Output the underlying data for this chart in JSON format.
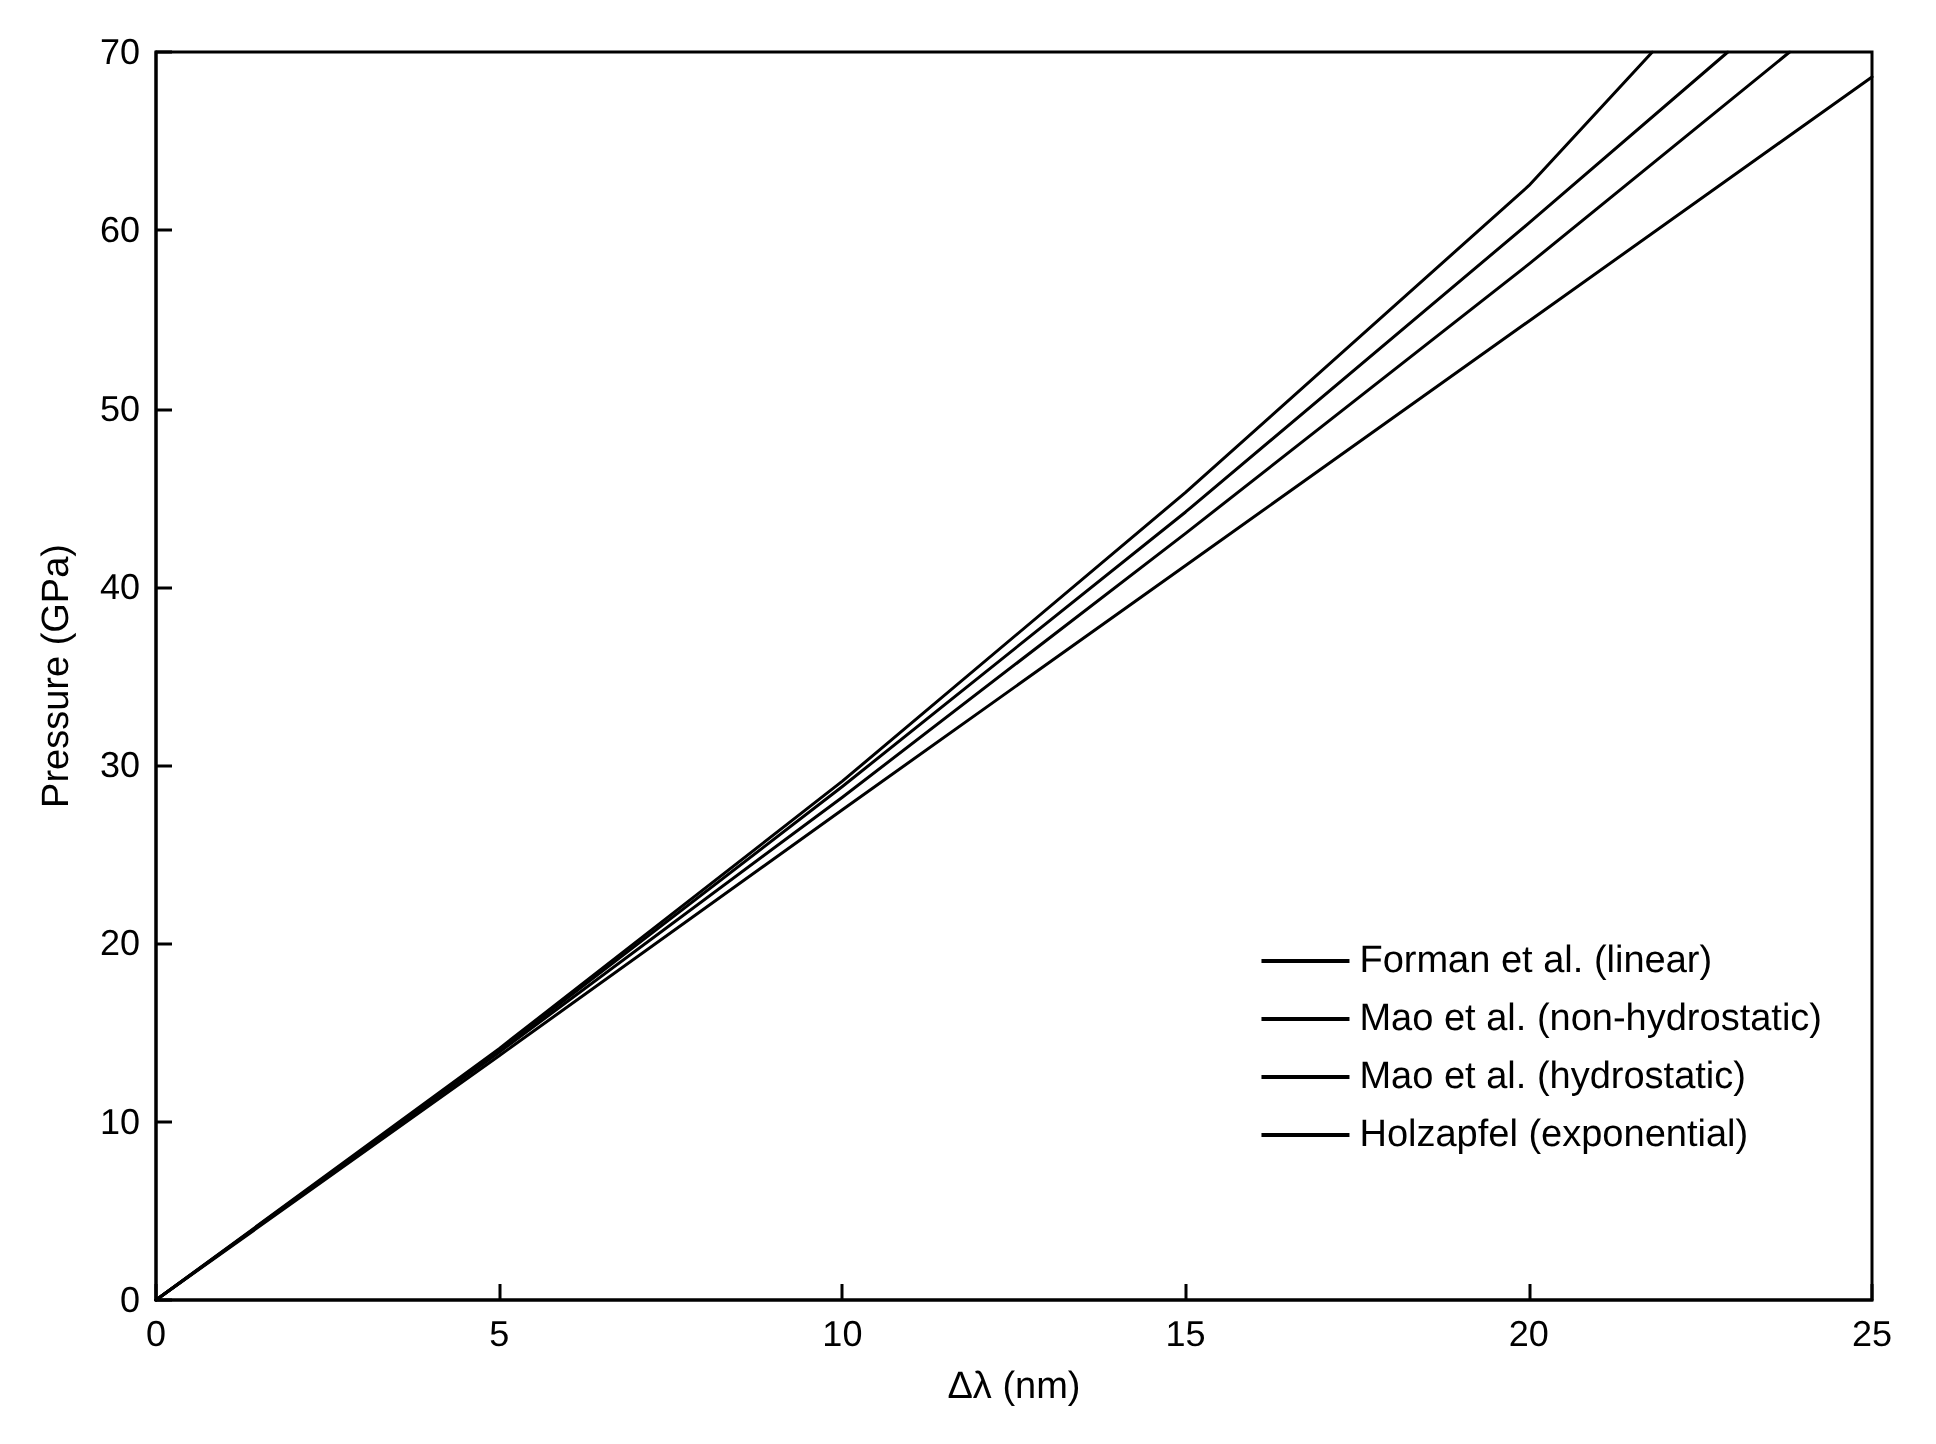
{
  "chart_data": {
    "type": "line",
    "xlabel": "Δλ (nm)",
    "ylabel": "Pressure (GPa)",
    "xlim": [
      0,
      25
    ],
    "ylim": [
      0,
      70
    ],
    "xticks": [
      0,
      5,
      10,
      15,
      20,
      25
    ],
    "yticks": [
      0,
      10,
      20,
      30,
      40,
      50,
      60,
      70
    ],
    "grid": false,
    "legend": "bottom right",
    "marker": "none",
    "line_style": "solid",
    "series": [
      {
        "name": "Forman et al. (linear)",
        "color": "#000000",
        "x": [
          0,
          5,
          10,
          15,
          20,
          25
        ],
        "values": [
          0,
          13.7,
          27.5,
          41.2,
          54.9,
          68.6
        ]
      },
      {
        "name": "Mao et al. (non-hydrostatic)",
        "color": "#000000",
        "x": [
          0,
          5,
          10,
          15,
          20,
          23.8
        ],
        "values": [
          0,
          13.9,
          28.2,
          43,
          58.1,
          70
        ]
      },
      {
        "name": "Mao et al. (hydrostatic)",
        "color": "#000000",
        "x": [
          0,
          5,
          10,
          15,
          20,
          22.9
        ],
        "values": [
          0,
          14,
          28.8,
          44.2,
          60.4,
          70
        ]
      },
      {
        "name": "Holzapfel (exponential)",
        "color": "#000000",
        "x": [
          0,
          5,
          10,
          15,
          20,
          21.8
        ],
        "values": [
          0,
          14.1,
          29.1,
          45.3,
          62.5,
          70
        ]
      }
    ]
  }
}
